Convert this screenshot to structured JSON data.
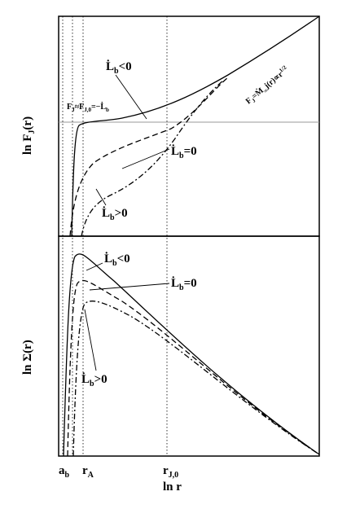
{
  "top_panel": {
    "y_label": [
      "ln F",
      "J",
      "(r)"
    ],
    "label_negative": [
      "L̇",
      "b",
      "<0"
    ],
    "label_zero": [
      "L̇",
      "b",
      "=0"
    ],
    "label_positive": [
      "L̇",
      "b",
      ">0"
    ],
    "plateau_label": [
      "F",
      "J",
      "≈F",
      "J,0",
      "=−L̇",
      "b"
    ],
    "asymptote_label": [
      "F",
      "J",
      "=Ṁ",
      "∞",
      "j(r)∝r",
      "1/2"
    ]
  },
  "bottom_panel": {
    "y_label": [
      "ln Σ(r)"
    ],
    "label_negative": [
      "L̇",
      "b",
      "<0"
    ],
    "label_zero": [
      "L̇",
      "b",
      "=0"
    ],
    "label_positive": [
      "L̇",
      "b",
      ">0"
    ]
  },
  "x_axis": {
    "tick_a": [
      "a",
      "b"
    ],
    "tick_rA": [
      "r",
      "A"
    ],
    "tick_rJ0": [
      "r",
      "J,0"
    ],
    "label": "ln r"
  }
}
